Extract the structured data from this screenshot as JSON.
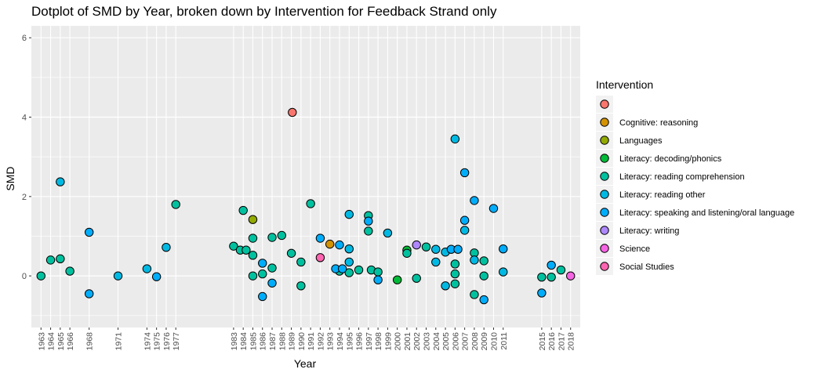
{
  "chart_data": {
    "type": "scatter",
    "title": "Dotplot of SMD by Year, broken down by Intervention for Feedback Strand only",
    "xlabel": "Year",
    "ylabel": "SMD",
    "ylim": [
      -1.3,
      6.3
    ],
    "yticks": [
      0,
      2,
      4,
      6
    ],
    "grid": true,
    "legend_position": "right",
    "legend_title": "Intervention",
    "categories": [
      "1963",
      "1964",
      "1965",
      "1966",
      "1968",
      "1971",
      "1974",
      "1975",
      "1976",
      "1977",
      "1983",
      "1984",
      "1985",
      "1986",
      "1987",
      "1988",
      "1989",
      "1990",
      "1991",
      "1992",
      "1993",
      "1994",
      "1995",
      "1996",
      "1997",
      "1998",
      "1999",
      "2000",
      "2001",
      "2002",
      "2003",
      "2004",
      "2005",
      "2006",
      "2007",
      "2008",
      "2009",
      "2010",
      "2011",
      "2015",
      "2016",
      "2017",
      "2018"
    ],
    "series": [
      {
        "name": "",
        "color": "#F8766D",
        "points": [
          [
            1989.1,
            4.12
          ]
        ]
      },
      {
        "name": "Cognitive: reasoning",
        "color": "#D39200",
        "points": [
          [
            1993,
            0.8
          ]
        ]
      },
      {
        "name": "Languages",
        "color": "#93AA00",
        "points": [
          [
            1985,
            1.42
          ]
        ]
      },
      {
        "name": "Literacy: decoding/phonics",
        "color": "#00BA38",
        "points": [
          [
            2000,
            -0.1
          ],
          [
            2001,
            0.65
          ]
        ]
      },
      {
        "name": "Literacy: reading comprehension",
        "color": "#00C19F",
        "points": [
          [
            1963,
            0.0
          ],
          [
            1964,
            0.4
          ],
          [
            1965,
            0.43
          ],
          [
            1966,
            0.12
          ],
          [
            1977,
            1.8
          ],
          [
            1983,
            0.75
          ],
          [
            1983.7,
            0.65
          ],
          [
            1984,
            1.65
          ],
          [
            1984.3,
            0.65
          ],
          [
            1985,
            0.95
          ],
          [
            1985,
            0.52
          ],
          [
            1985,
            0.0
          ],
          [
            1986,
            0.05
          ],
          [
            1987,
            0.97
          ],
          [
            1987,
            0.2
          ],
          [
            1988,
            1.02
          ],
          [
            1989,
            0.57
          ],
          [
            1990,
            0.35
          ],
          [
            1990,
            -0.25
          ],
          [
            1991,
            1.82
          ],
          [
            1994,
            0.12
          ],
          [
            1995,
            0.08
          ],
          [
            1996,
            0.15
          ],
          [
            1997,
            1.52
          ],
          [
            1997,
            1.13
          ],
          [
            1997.3,
            0.15
          ],
          [
            1998,
            0.1
          ],
          [
            2001,
            0.57
          ],
          [
            2002,
            -0.06
          ],
          [
            2003,
            0.73
          ],
          [
            2006,
            0.3
          ],
          [
            2006,
            0.05
          ],
          [
            2006,
            -0.2
          ],
          [
            2008,
            0.58
          ],
          [
            2008,
            -0.47
          ],
          [
            2009,
            0.38
          ],
          [
            2009,
            0.0
          ],
          [
            2015,
            -0.03
          ],
          [
            2016,
            -0.03
          ],
          [
            2017,
            0.15
          ]
        ]
      },
      {
        "name": "Literacy: reading other",
        "color": "#00B9E3",
        "points": [
          [
            1965,
            2.37
          ],
          [
            1971,
            0.0
          ],
          [
            1974,
            0.18
          ],
          [
            1976,
            0.72
          ],
          [
            1995,
            1.55
          ],
          [
            1995,
            0.68
          ],
          [
            1995,
            0.35
          ],
          [
            1999,
            1.08
          ],
          [
            2004,
            0.67
          ],
          [
            2004,
            0.35
          ],
          [
            2005,
            0.6
          ],
          [
            2005,
            -0.25
          ],
          [
            2006,
            3.45
          ],
          [
            2007,
            1.15
          ],
          [
            2008,
            0.4
          ],
          [
            2011,
            0.1
          ]
        ]
      },
      {
        "name": "Literacy: speaking and listening/oral language",
        "color": "#00ADFA",
        "points": [
          [
            1968,
            1.1
          ],
          [
            1968,
            -0.45
          ],
          [
            1975,
            -0.02
          ],
          [
            1986,
            0.32
          ],
          [
            1986,
            -0.52
          ],
          [
            1987,
            -0.18
          ],
          [
            1992,
            0.95
          ],
          [
            1993.6,
            0.18
          ],
          [
            1994,
            0.78
          ],
          [
            1994.3,
            0.18
          ],
          [
            1997,
            1.38
          ],
          [
            1998,
            -0.1
          ],
          [
            2005.6,
            0.67
          ],
          [
            2006.3,
            0.67
          ],
          [
            2007,
            2.6
          ],
          [
            2007,
            1.4
          ],
          [
            2008,
            1.9
          ],
          [
            2009,
            -0.6
          ],
          [
            2010,
            1.7
          ],
          [
            2011,
            0.68
          ],
          [
            2015,
            -0.43
          ],
          [
            2016,
            0.27
          ]
        ]
      },
      {
        "name": "Literacy: writing",
        "color": "#AE87FF",
        "points": [
          [
            2002,
            0.78
          ]
        ]
      },
      {
        "name": "Science",
        "color": "#F564E3",
        "points": [
          [
            2018,
            0.0
          ]
        ]
      },
      {
        "name": "Social Studies",
        "color": "#FF64B0",
        "points": [
          [
            1992,
            0.46
          ]
        ]
      }
    ]
  }
}
